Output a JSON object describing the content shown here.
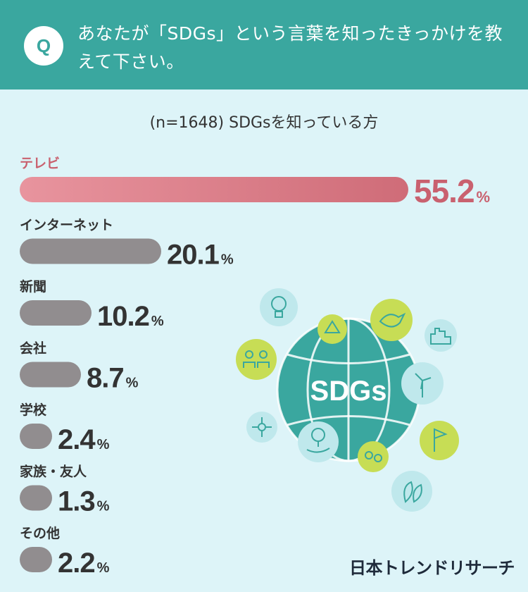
{
  "header": {
    "badge": "Q",
    "question": "あなたが「SDGs」という言葉を知ったきっかけを教えて下さい。"
  },
  "sample_note": "(n=1648) SDGsを知っている方",
  "brand": "日本トレンドリサーチ",
  "illustration": {
    "globe_label": "SDGs",
    "icons": [
      "lightbulb-icon",
      "recycle-icon",
      "dove-icon",
      "city-icon",
      "people-equality-icon",
      "wind-turbine-icon",
      "molecule-icon",
      "flag-icon",
      "hand-tree-icon",
      "gender-icon",
      "leaves-icon"
    ]
  },
  "colors": {
    "header_bg": "#3aa79f",
    "page_bg": "#ddf4f8",
    "highlight_bar": "#d9707c",
    "highlight_text": "#c9616f",
    "bar": "#918d8f",
    "value_text": "#333333",
    "globe": "#3aa79f"
  },
  "chart_data": {
    "type": "bar",
    "orientation": "horizontal",
    "unit": "%",
    "categories": [
      "テレビ",
      "インターネット",
      "新聞",
      "会社",
      "学校",
      "家族・友人",
      "その他"
    ],
    "values": [
      55.2,
      20.1,
      10.2,
      8.7,
      2.4,
      1.3,
      2.2
    ],
    "highlight_index": 0
  }
}
